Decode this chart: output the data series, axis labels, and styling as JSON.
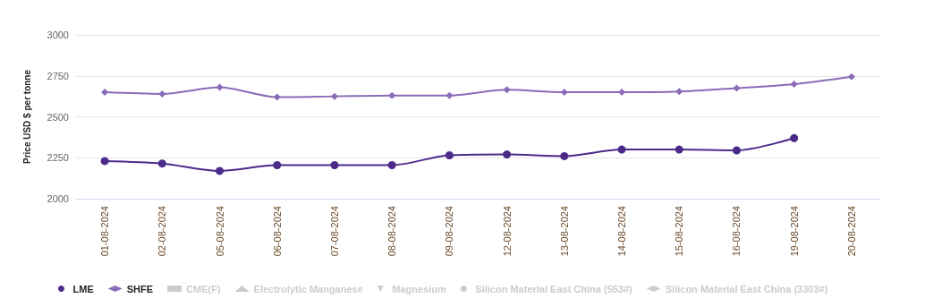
{
  "chart_data": {
    "type": "line",
    "ylabel": "Price USD $ per tonne",
    "categories": [
      "01-08-2024",
      "02-08-2024",
      "05-08-2024",
      "06-08-2024",
      "07-08-2024",
      "08-08-2024",
      "09-08-2024",
      "12-08-2024",
      "13-08-2024",
      "14-08-2024",
      "15-08-2024",
      "16-08-2024",
      "19-08-2024",
      "20-08-2024"
    ],
    "series": [
      {
        "name": "LME",
        "color": "#4b2a8a",
        "marker": "circle",
        "values": [
          2230,
          2215,
          2170,
          2205,
          2205,
          2205,
          2265,
          2270,
          2260,
          2300,
          2300,
          2295,
          2370,
          null
        ]
      },
      {
        "name": "SHFE",
        "color": "#8a6bb8",
        "marker": "diamond",
        "values": [
          2650,
          2640,
          2680,
          2620,
          2625,
          2630,
          2630,
          2665,
          2650,
          2650,
          2655,
          2675,
          2700,
          2745
        ]
      },
      {
        "name": "CME(F)",
        "color": "#cccccc",
        "marker": "square",
        "values": [
          null,
          null,
          null,
          null,
          null,
          null,
          null,
          null,
          null,
          null,
          null,
          null,
          null,
          null
        ]
      },
      {
        "name": "Electrolytic Manganese",
        "color": "#cccccc",
        "marker": "triangle",
        "values": [
          null,
          null,
          null,
          null,
          null,
          null,
          null,
          null,
          null,
          null,
          null,
          null,
          null,
          null
        ]
      },
      {
        "name": "Magnesium",
        "color": "#cccccc",
        "marker": "triangle-down",
        "values": [
          null,
          null,
          null,
          null,
          null,
          null,
          null,
          null,
          null,
          null,
          null,
          null,
          null,
          null
        ]
      },
      {
        "name": "Silicon Material East China (553#)",
        "color": "#cccccc",
        "marker": "circle",
        "values": [
          null,
          null,
          null,
          null,
          null,
          null,
          null,
          null,
          null,
          null,
          null,
          null,
          null,
          null
        ]
      },
      {
        "name": "Silicon Material East China (3303#)",
        "color": "#cccccc",
        "marker": "diamond",
        "values": [
          null,
          null,
          null,
          null,
          null,
          null,
          null,
          null,
          null,
          null,
          null,
          null,
          null,
          null
        ]
      }
    ],
    "ylim": [
      2000,
      3000
    ],
    "yticks": [
      2000,
      2250,
      2500,
      2750,
      3000
    ],
    "grid": "y",
    "legend": "bottom"
  }
}
